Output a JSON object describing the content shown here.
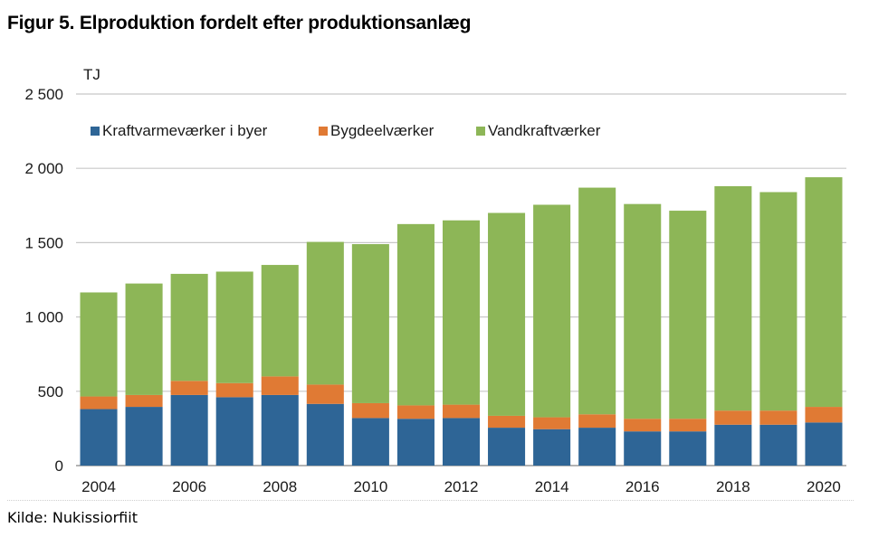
{
  "title": "Figur 5. Elproduktion fordelt efter produktionsanlæg",
  "source": "Kilde: Nukissiorfiit",
  "chart_data": {
    "type": "bar",
    "stacked": true,
    "unit_label": "TJ",
    "categories": [
      "2004",
      "2005",
      "2006",
      "2007",
      "2008",
      "2009",
      "2010",
      "2011",
      "2012",
      "2013",
      "2014",
      "2015",
      "2016",
      "2017",
      "2018",
      "2019",
      "2020"
    ],
    "x_tick_labels": [
      "2004",
      "",
      "2006",
      "",
      "2008",
      "",
      "2010",
      "",
      "2012",
      "",
      "2014",
      "",
      "2016",
      "",
      "2018",
      "",
      "2020"
    ],
    "y_ticks": [
      0,
      500,
      1000,
      1500,
      2000,
      2500
    ],
    "y_tick_labels": [
      "0",
      "500",
      "1 000",
      "1 500",
      "2 000",
      "2 500"
    ],
    "ylim": [
      0,
      2500
    ],
    "grid": true,
    "legend_position": "top-left",
    "series": [
      {
        "name": "Kraftvarmeværker i byer",
        "color": "#2e6596",
        "values": [
          380,
          395,
          475,
          460,
          475,
          415,
          320,
          315,
          320,
          255,
          245,
          255,
          230,
          230,
          275,
          275,
          290
        ]
      },
      {
        "name": "Bygdeelværker",
        "color": "#e07a34",
        "values": [
          85,
          80,
          95,
          95,
          125,
          130,
          100,
          90,
          90,
          80,
          80,
          90,
          85,
          85,
          95,
          95,
          105
        ]
      },
      {
        "name": "Vandkraftværker",
        "color": "#8db657",
        "values": [
          700,
          750,
          720,
          750,
          750,
          960,
          1070,
          1220,
          1240,
          1365,
          1430,
          1525,
          1445,
          1400,
          1510,
          1470,
          1545
        ]
      }
    ]
  }
}
